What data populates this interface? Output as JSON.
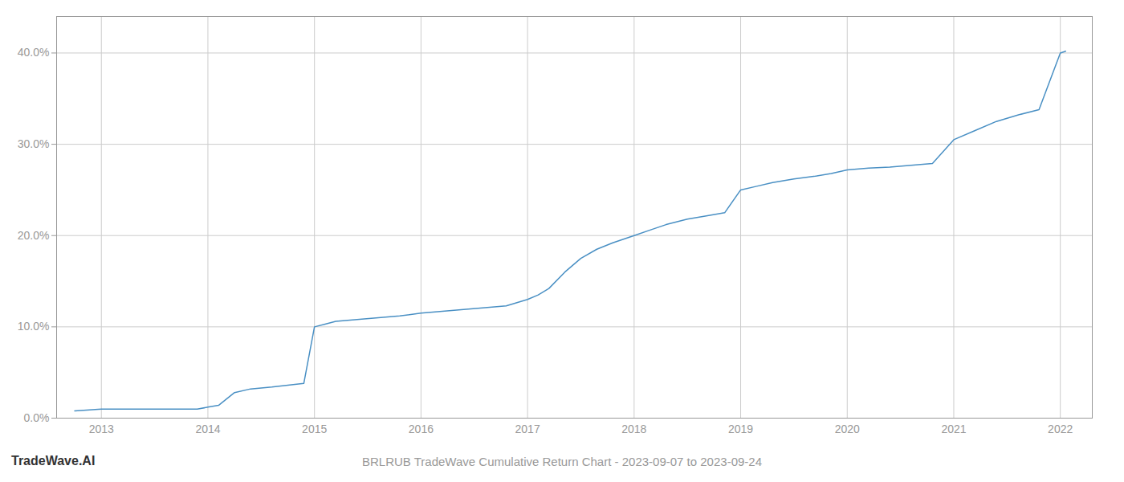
{
  "chart_data": {
    "type": "line",
    "title": "BRLRUB TradeWave Cumulative Return Chart - 2023-09-07 to 2023-09-24",
    "annotations": [
      {
        "text": "TradeWave.AI"
      }
    ],
    "x": [
      2012.75,
      2013.0,
      2013.15,
      2013.3,
      2013.5,
      2013.7,
      2013.9,
      2014.0,
      2014.1,
      2014.25,
      2014.4,
      2014.6,
      2014.75,
      2014.9,
      2015.0,
      2015.1,
      2015.2,
      2015.4,
      2015.6,
      2015.8,
      2016.0,
      2016.2,
      2016.4,
      2016.6,
      2016.8,
      2017.0,
      2017.1,
      2017.2,
      2017.35,
      2017.5,
      2017.65,
      2017.8,
      2018.0,
      2018.15,
      2018.3,
      2018.5,
      2018.7,
      2018.85,
      2019.0,
      2019.15,
      2019.3,
      2019.5,
      2019.7,
      2019.85,
      2020.0,
      2020.2,
      2020.4,
      2020.6,
      2020.8,
      2021.0,
      2021.2,
      2021.4,
      2021.6,
      2021.8,
      2022.0,
      2022.05
    ],
    "values": [
      0.008,
      0.01,
      0.01,
      0.01,
      0.01,
      0.01,
      0.01,
      0.012,
      0.014,
      0.028,
      0.032,
      0.034,
      0.036,
      0.038,
      0.1,
      0.103,
      0.106,
      0.108,
      0.11,
      0.112,
      0.115,
      0.117,
      0.119,
      0.121,
      0.123,
      0.13,
      0.135,
      0.142,
      0.16,
      0.175,
      0.185,
      0.192,
      0.2,
      0.206,
      0.212,
      0.218,
      0.222,
      0.225,
      0.25,
      0.254,
      0.258,
      0.262,
      0.265,
      0.268,
      0.272,
      0.274,
      0.275,
      0.277,
      0.279,
      0.305,
      0.315,
      0.325,
      0.332,
      0.338,
      0.4,
      0.402
    ],
    "color": "#4a90c4",
    "xlim": [
      2012.58,
      2022.3
    ],
    "xticks": [
      2013,
      2014,
      2015,
      2016,
      2017,
      2018,
      2019,
      2020,
      2021,
      2022
    ],
    "ylim": [
      0.0,
      0.44
    ],
    "yticks": [
      {
        "value": 0.0,
        "label": "0.0%"
      },
      {
        "value": 0.1,
        "label": "10.0%"
      },
      {
        "value": 0.2,
        "label": "20.0%"
      },
      {
        "value": 0.3,
        "label": "30.0%"
      },
      {
        "value": 0.4,
        "label": "40.0%"
      }
    ],
    "grid": true
  }
}
